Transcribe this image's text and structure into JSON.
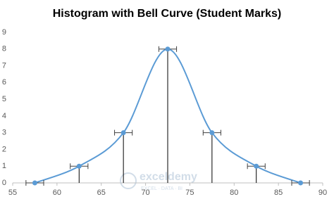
{
  "chart_data": {
    "type": "scatter",
    "title": "Histogram with Bell Curve (Student Marks)",
    "x": [
      57.5,
      62.5,
      67.5,
      72.5,
      77.5,
      82.5,
      87.5
    ],
    "series": [
      {
        "color": "#5b9bd5",
        "values": [
          0,
          1,
          3,
          8,
          3,
          1,
          0
        ],
        "x_errors": [
          1,
          1,
          1,
          1,
          1,
          1,
          1
        ]
      }
    ],
    "smooth": true,
    "drop_lines": true,
    "xlim": [
      55,
      90
    ],
    "xticks": [
      55,
      60,
      65,
      70,
      75,
      80,
      85,
      90
    ],
    "ylim": [
      0,
      9
    ],
    "yticks": [
      0,
      1,
      2,
      3,
      4,
      5,
      6,
      7,
      8,
      9
    ],
    "grid": false,
    "watermark": [
      "exceldemy",
      "EXCEL · DATA · BI"
    ]
  }
}
